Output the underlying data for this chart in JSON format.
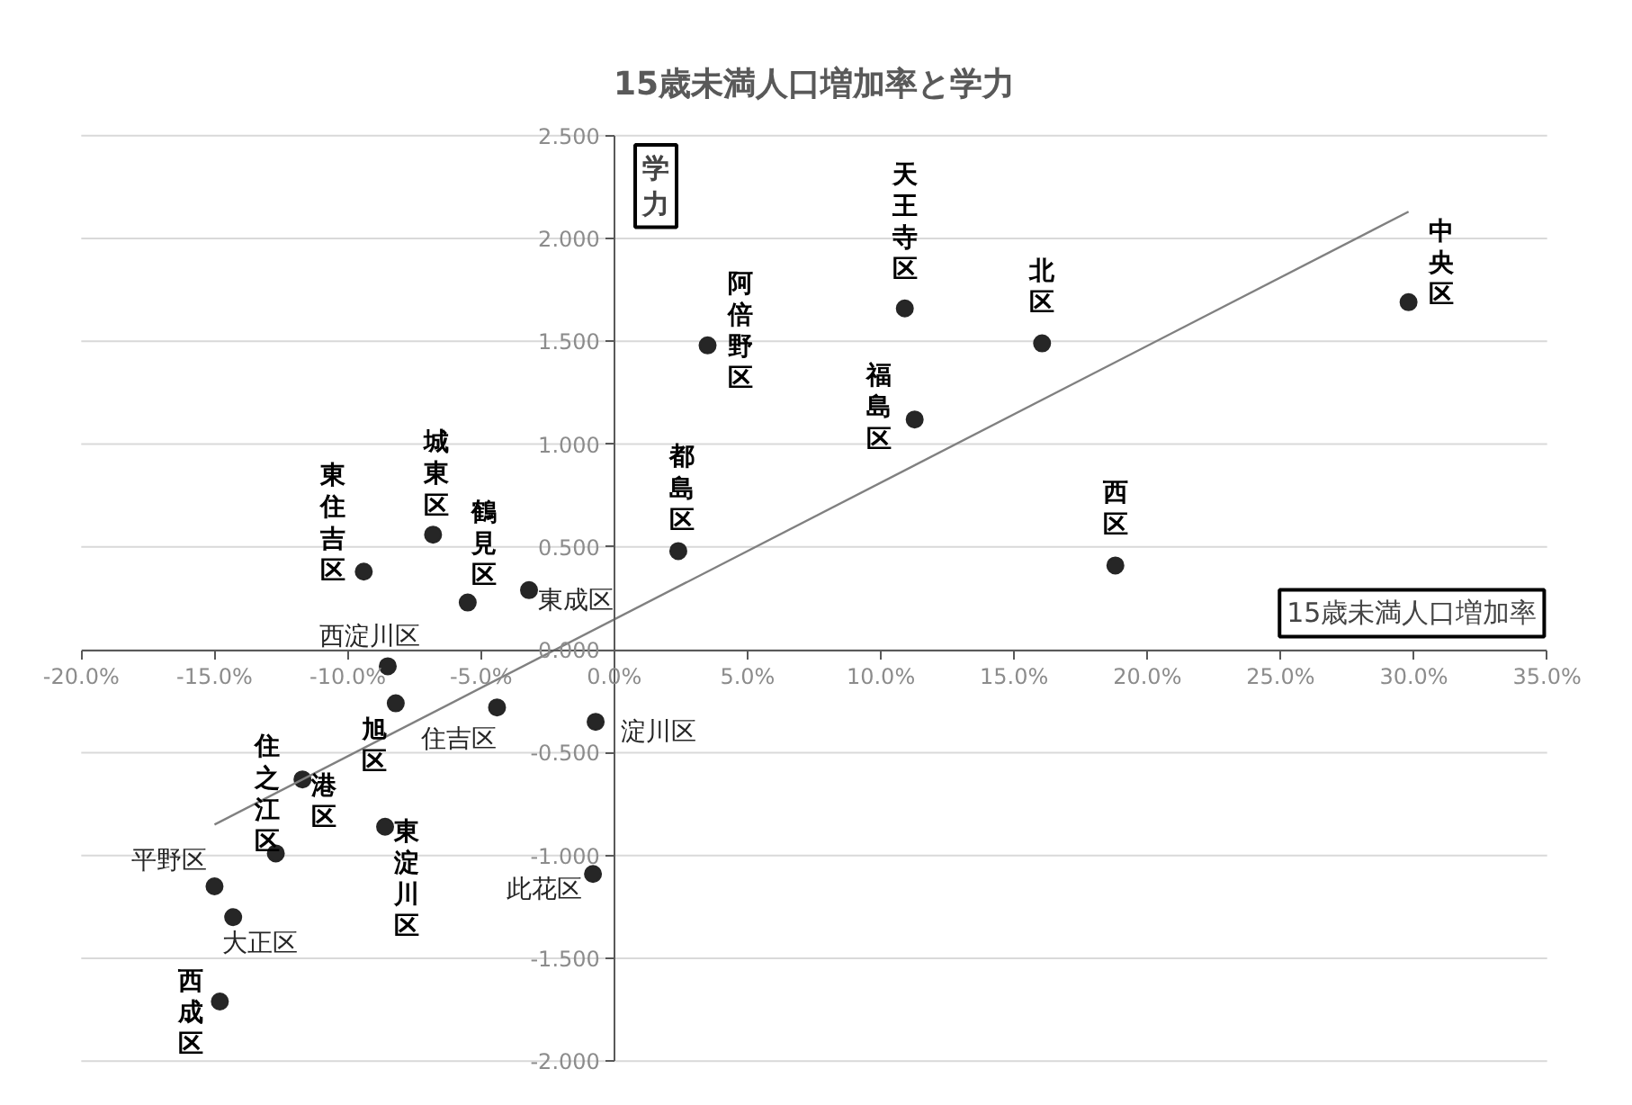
{
  "chart_data": {
    "type": "scatter",
    "title": "15歳未満人口増加率と学力",
    "xlabel": "15歳未満人口増加率",
    "ylabel": "学力",
    "marker": "circle",
    "grid": "y",
    "xlim": [
      -20,
      35
    ],
    "ylim": [
      -2,
      2.5
    ],
    "xticks": [
      {
        "value": -20,
        "label": "-20.0%"
      },
      {
        "value": -15,
        "label": "-15.0%"
      },
      {
        "value": -10,
        "label": "-10.0%"
      },
      {
        "value": -5,
        "label": "-5.0%"
      },
      {
        "value": 0,
        "label": "0.0%"
      },
      {
        "value": 5,
        "label": "5.0%"
      },
      {
        "value": 10,
        "label": "10.0%"
      },
      {
        "value": 15,
        "label": "15.0%"
      },
      {
        "value": 20,
        "label": "20.0%"
      },
      {
        "value": 25,
        "label": "25.0%"
      },
      {
        "value": 30,
        "label": "30.0%"
      },
      {
        "value": 35,
        "label": "35.0%"
      }
    ],
    "yticks": [
      {
        "value": -2,
        "label": "-2.000"
      },
      {
        "value": -1.5,
        "label": "-1.500"
      },
      {
        "value": -1,
        "label": "-1.000"
      },
      {
        "value": -0.5,
        "label": "-0.500"
      },
      {
        "value": 0,
        "label": "0.000"
      },
      {
        "value": 0.5,
        "label": "0.500"
      },
      {
        "value": 1,
        "label": "1.000"
      },
      {
        "value": 1.5,
        "label": "1.500"
      },
      {
        "value": 2,
        "label": "2.000"
      },
      {
        "value": 2.5,
        "label": "2.500"
      }
    ],
    "series": [
      {
        "color": "#262626",
        "x": [
          29.8,
          10.9,
          16.05,
          3.5,
          11.27,
          2.4,
          18.8,
          -6.8,
          -9.4,
          -5.5,
          -3.2,
          -8.5,
          -8.2,
          -4.4,
          -0.7,
          -11.7,
          -12.7,
          -8.6,
          -0.8,
          -15.0,
          -14.3,
          -14.8
        ],
        "values": [
          1.69,
          1.66,
          1.49,
          1.48,
          1.12,
          0.48,
          0.41,
          0.56,
          0.38,
          0.23,
          0.29,
          -0.08,
          -0.26,
          -0.28,
          -0.35,
          -0.63,
          -0.99,
          -0.86,
          -1.09,
          -1.15,
          -1.3,
          -1.71
        ]
      },
      {
        "type": "line",
        "marker": "none",
        "color": "#808080",
        "x": [
          -15.0,
          29.8
        ],
        "values": [
          -0.85,
          2.13
        ]
      }
    ],
    "annotations": [
      {
        "text": "中央区",
        "x": 29.8,
        "y": 1.69
      },
      {
        "text": "天王寺区",
        "x": 10.9,
        "y": 1.66
      },
      {
        "text": "北区",
        "x": 16.05,
        "y": 1.49
      },
      {
        "text": "阿倍野区",
        "x": 3.5,
        "y": 1.48
      },
      {
        "text": "福島区",
        "x": 11.27,
        "y": 1.12
      },
      {
        "text": "都島区",
        "x": 2.4,
        "y": 0.48
      },
      {
        "text": "西区",
        "x": 18.8,
        "y": 0.41
      },
      {
        "text": "城東区",
        "x": -6.8,
        "y": 0.56
      },
      {
        "text": "東住吉区",
        "x": -9.4,
        "y": 0.38
      },
      {
        "text": "鶴見区",
        "x": -5.5,
        "y": 0.23
      },
      {
        "text": "東成区",
        "x": -3.2,
        "y": 0.29
      },
      {
        "text": "西淀川区",
        "x": -8.5,
        "y": -0.08
      },
      {
        "text": "旭区",
        "x": -8.2,
        "y": -0.26
      },
      {
        "text": "住吉区",
        "x": -4.4,
        "y": -0.28
      },
      {
        "text": "淀川区",
        "x": -0.7,
        "y": -0.35
      },
      {
        "text": "港区",
        "x": -11.7,
        "y": -0.63
      },
      {
        "text": "住之江区",
        "x": -12.7,
        "y": -0.99
      },
      {
        "text": "東淀川区",
        "x": -8.6,
        "y": -0.86
      },
      {
        "text": "此花区",
        "x": -0.8,
        "y": -1.09
      },
      {
        "text": "平野区",
        "x": -15.0,
        "y": -1.15
      },
      {
        "text": "大正区",
        "x": -14.3,
        "y": -1.3
      },
      {
        "text": "西成区",
        "x": -14.8,
        "y": -1.71
      }
    ]
  }
}
